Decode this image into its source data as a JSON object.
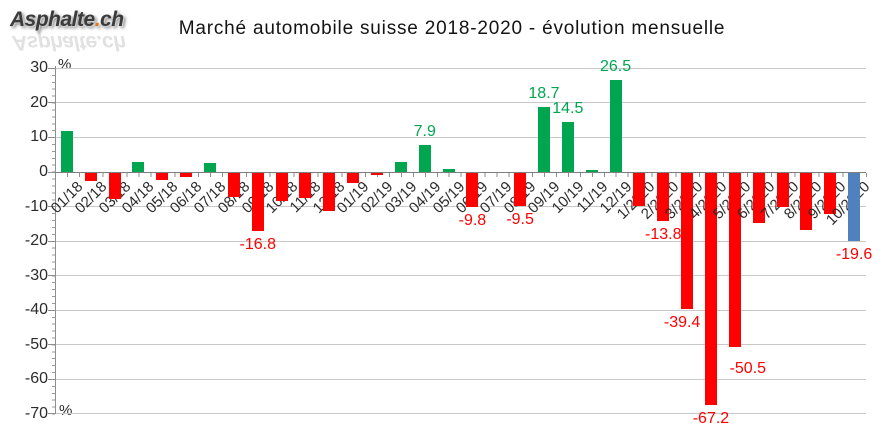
{
  "logo": {
    "text_a": "Asphalte",
    "dot": ".",
    "text_b": "ch",
    "reflect": "Asphalte.ch",
    "dot_color": "#e87511"
  },
  "title": "Marché automobile suisse 2018-2020 - évolution mensuelle",
  "chart_data": {
    "type": "bar",
    "title": "Marché automobile suisse 2018-2020 - évolution mensuelle",
    "unit": "%",
    "ylim": [
      -70,
      30
    ],
    "yticks": [
      30,
      20,
      10,
      0,
      -10,
      -20,
      -30,
      -40,
      -50,
      -60,
      -70
    ],
    "grid": true,
    "legend": "none",
    "colors": {
      "positive": "#00a550",
      "negative": "#fe0000",
      "current": "#4f81bd",
      "label_positive": "#00a550",
      "label_negative": "#fe0000"
    },
    "points": [
      {
        "month": "01/18",
        "value": 11.9
      },
      {
        "month": "02/18",
        "value": -2.3
      },
      {
        "month": "03/18",
        "value": -7.6
      },
      {
        "month": "04/18",
        "value": 3.0
      },
      {
        "month": "05/18",
        "value": -2.0
      },
      {
        "month": "06/18",
        "value": -1.1
      },
      {
        "month": "07/18",
        "value": 2.7
      },
      {
        "month": "08/18",
        "value": -6.9
      },
      {
        "month": "09/18",
        "value": -16.8,
        "label": "-16.8"
      },
      {
        "month": "10/18",
        "value": -8.0
      },
      {
        "month": "11/18",
        "value": -7.3
      },
      {
        "month": "12/18",
        "value": -10.9
      },
      {
        "month": "01/19",
        "value": -2.9
      },
      {
        "month": "02/19",
        "value": -0.6
      },
      {
        "month": "03/19",
        "value": 3.0
      },
      {
        "month": "04/19",
        "value": 7.9,
        "label": "7.9"
      },
      {
        "month": "05/19",
        "value": 0.9
      },
      {
        "month": "06/19",
        "value": -9.8,
        "label": "-9.8"
      },
      {
        "month": "07/19",
        "value": 0
      },
      {
        "month": "08/19",
        "value": -9.5,
        "label": "-9.5"
      },
      {
        "month": "09/19",
        "value": 18.7,
        "label": "18.7"
      },
      {
        "month": "10/19",
        "value": 14.5,
        "label": "14.5"
      },
      {
        "month": "11/19",
        "value": 0.5
      },
      {
        "month": "12/19",
        "value": 26.5,
        "label": "26.5"
      },
      {
        "month": "1/2020",
        "value": -9.5
      },
      {
        "month": "2/2020",
        "value": -13.8,
        "label": "-13.8"
      },
      {
        "month": "3/2020",
        "value": -39.4,
        "label": "-39.4",
        "label_dx": -5
      },
      {
        "month": "4/2020",
        "value": -67.2,
        "label": "-67.2"
      },
      {
        "month": "5/2020",
        "value": -50.5,
        "label": "-50.5",
        "label_dx": 13,
        "label_dy": 8
      },
      {
        "month": "6/2020",
        "value": -14.4
      },
      {
        "month": "7/2020",
        "value": -9.7
      },
      {
        "month": "8/2020",
        "value": -16.6
      },
      {
        "month": "9/2020",
        "value": -11.9
      },
      {
        "month": "10/2020",
        "value": -19.6,
        "label": "-19.6",
        "color": "current"
      }
    ]
  }
}
